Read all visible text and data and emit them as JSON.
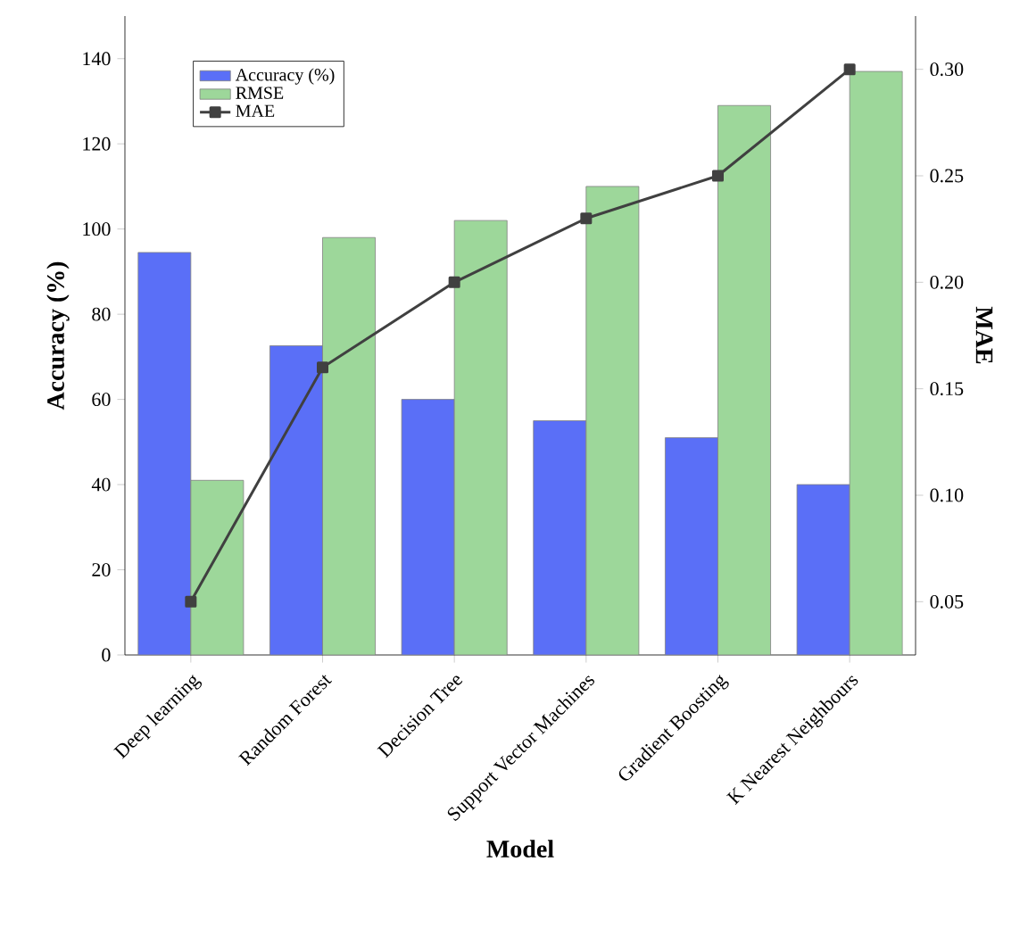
{
  "chart_data": {
    "type": "bar",
    "xlabel": "Model",
    "ylabel": "Accuracy (%)",
    "y2label": "MAE",
    "categories": [
      "Deep learning",
      "Random Forest",
      "Decision Tree",
      "Support Vector Machines",
      "Gradient Boosting",
      "K Nearest Neighbours"
    ],
    "series": [
      {
        "name": "Accuracy (%)",
        "color": "#5a6ff7",
        "values": [
          94.5,
          72.6,
          60,
          55,
          51,
          40
        ]
      },
      {
        "name": "RMSE",
        "color": "#9dd79a",
        "values": [
          41,
          98,
          102,
          110,
          129,
          137
        ]
      },
      {
        "name": "MAE",
        "type": "line",
        "axis": "y2",
        "color": "#404040",
        "marker": "square",
        "values": [
          0.05,
          0.16,
          0.2,
          0.23,
          0.25,
          0.3
        ]
      }
    ],
    "ylim": [
      0,
      150
    ],
    "yticks": [
      0,
      20,
      40,
      60,
      80,
      100,
      120,
      140
    ],
    "y2lim": [
      0.025,
      0.325
    ],
    "y2ticks": [
      {
        "value": 0.05,
        "label": "0.05"
      },
      {
        "value": 0.1,
        "label": "0.10"
      },
      {
        "value": 0.15,
        "label": "0.15"
      },
      {
        "value": 0.2,
        "label": "0.20"
      },
      {
        "value": 0.25,
        "label": "0.25"
      },
      {
        "value": 0.3,
        "label": "0.30"
      }
    ],
    "legend": "top left",
    "grid": false
  }
}
